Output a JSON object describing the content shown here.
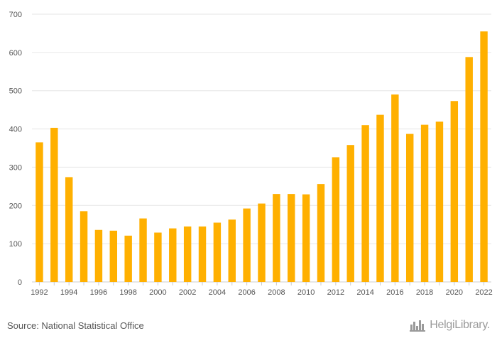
{
  "chart_data": {
    "type": "bar",
    "categories": [
      "1992",
      "1993",
      "1994",
      "1995",
      "1996",
      "1997",
      "1998",
      "1999",
      "2000",
      "2001",
      "2002",
      "2003",
      "2004",
      "2005",
      "2006",
      "2007",
      "2008",
      "2009",
      "2010",
      "2011",
      "2012",
      "2013",
      "2014",
      "2015",
      "2016",
      "2017",
      "2018",
      "2019",
      "2020",
      "2021",
      "2022"
    ],
    "values": [
      365,
      403,
      274,
      185,
      136,
      134,
      121,
      166,
      129,
      140,
      145,
      145,
      155,
      163,
      192,
      205,
      230,
      230,
      229,
      256,
      326,
      358,
      410,
      437,
      490,
      387,
      411,
      419,
      473,
      588,
      655
    ],
    "x_tick_labels": [
      "1992",
      "1994",
      "1996",
      "1998",
      "2000",
      "2002",
      "2004",
      "2006",
      "2008",
      "2010",
      "2012",
      "2014",
      "2016",
      "2018",
      "2020",
      "2022"
    ],
    "y_ticks": [
      0,
      100,
      200,
      300,
      400,
      500,
      600,
      700
    ],
    "ylim": [
      0,
      700
    ],
    "title": "",
    "xlabel": "",
    "ylabel": "",
    "grid": true,
    "legend": "none",
    "colors": {
      "bar": "#FFB000",
      "grid": "#e6e6e6",
      "axis": "#cccccc",
      "text": "#555555"
    }
  },
  "footer": {
    "source": "Source: National Statistical Office",
    "logo_text": "HelgiLibrary.",
    "logo_icon": "city-skyline-icon"
  }
}
